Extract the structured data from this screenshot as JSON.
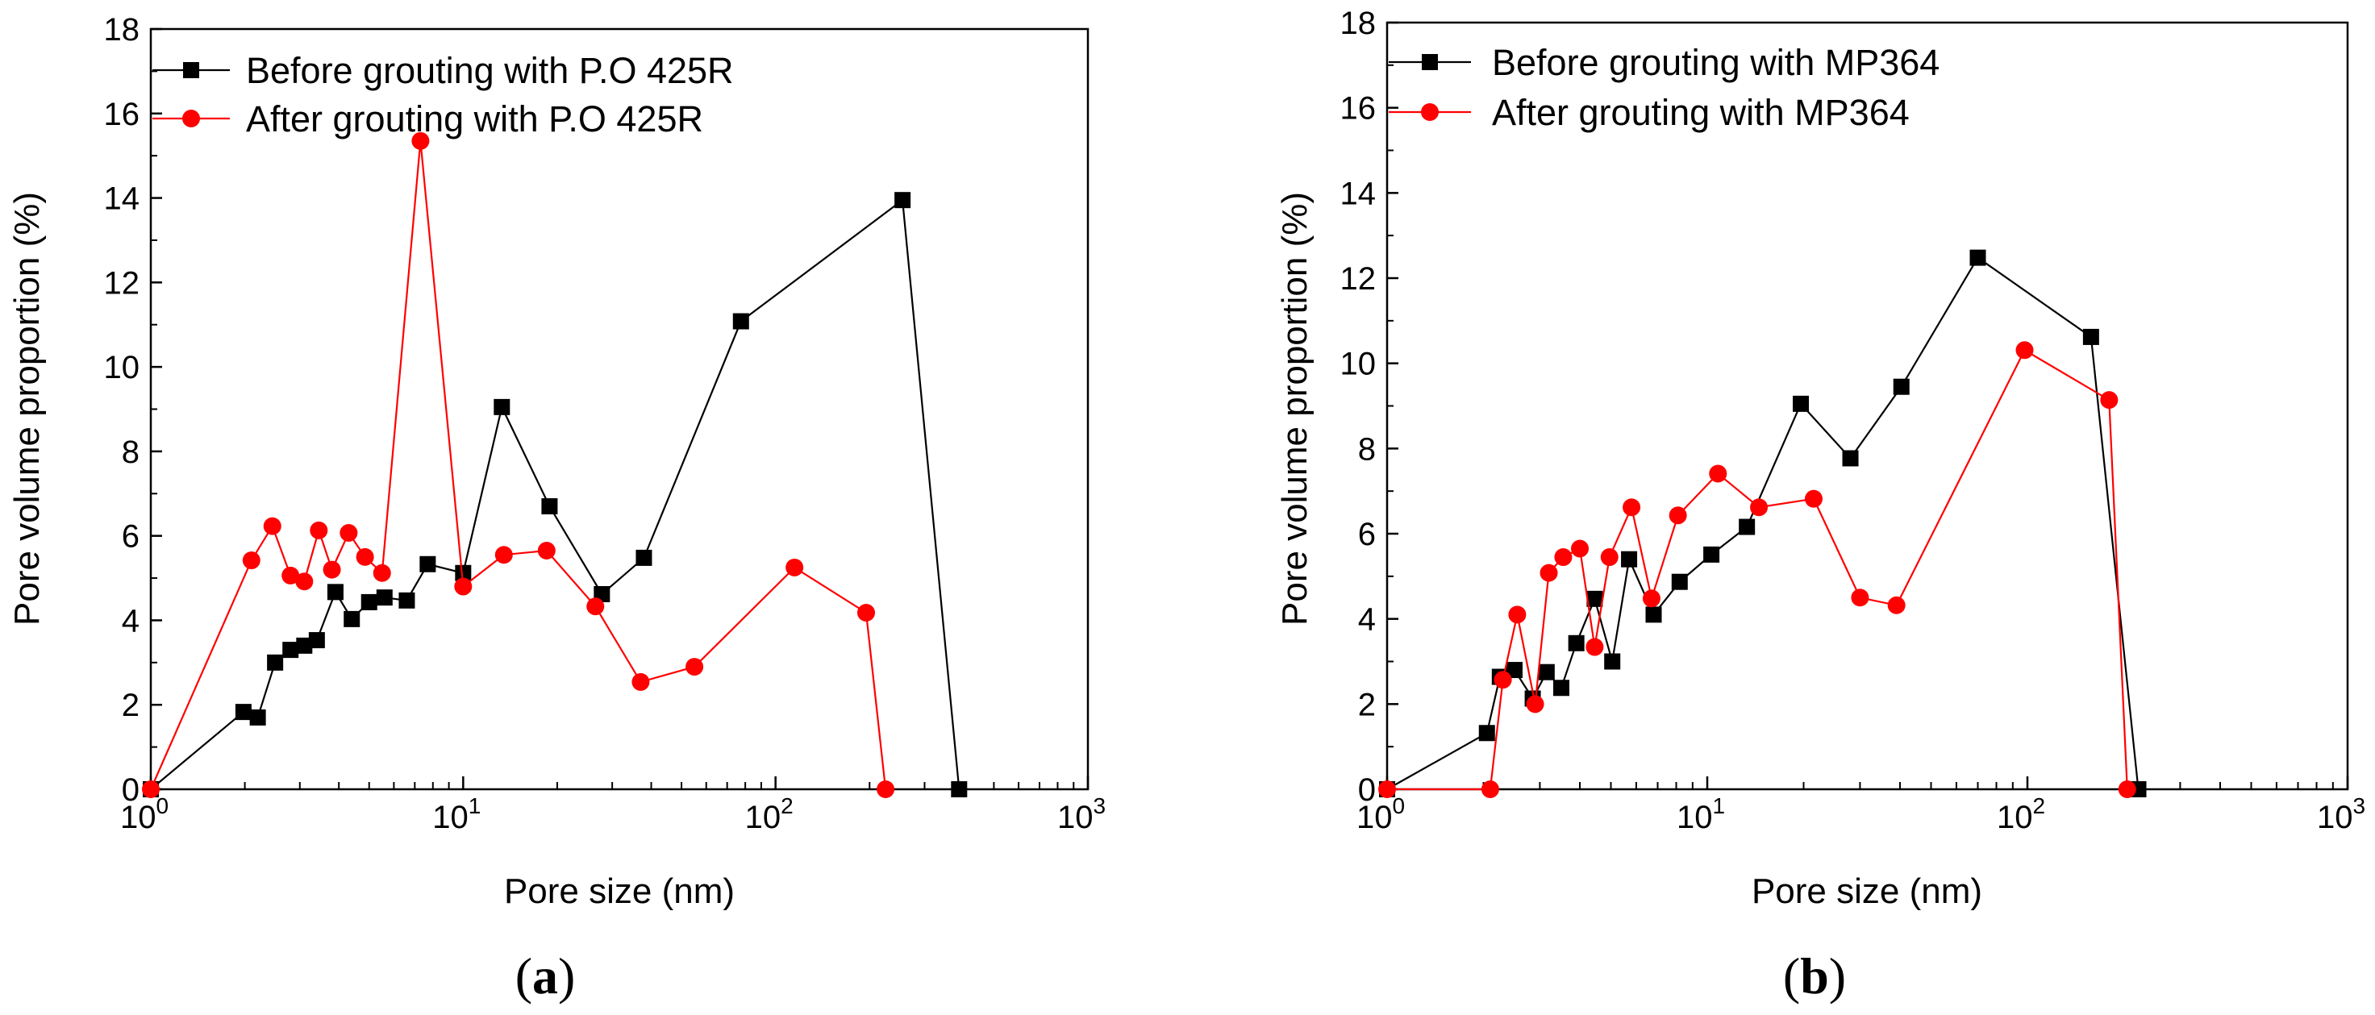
{
  "chart_data": [
    {
      "type": "line",
      "panel_label": "a",
      "xscale": "log",
      "xlim": [
        1,
        1000
      ],
      "ylim": [
        0,
        18
      ],
      "xlabel": "Pore size (nm)",
      "ylabel": "Pore volume proportion (%)",
      "xtick_values": [
        1,
        10,
        100,
        1000
      ],
      "xtick_labels": [
        "10^0",
        "10^1",
        "10^2",
        "10^3"
      ],
      "ytick_values": [
        0,
        2,
        4,
        6,
        8,
        10,
        12,
        14,
        16,
        18
      ],
      "ytick_labels": [
        "0",
        "2",
        "4",
        "6",
        "8",
        "10",
        "12",
        "14",
        "16",
        "18"
      ],
      "legend_position": "top-left",
      "series": [
        {
          "name": "Before grouting with P.O 425R",
          "color": "#000000",
          "marker": "square",
          "x": [
            1.0,
            1.98,
            2.2,
            2.5,
            2.8,
            3.1,
            3.4,
            3.9,
            4.4,
            5.0,
            5.6,
            6.6,
            7.7,
            10.0,
            13.3,
            18.9,
            27.8,
            37.9,
            77.5,
            255.0,
            387.0
          ],
          "y": [
            0.0,
            1.83,
            1.7,
            3.0,
            3.3,
            3.4,
            3.53,
            4.67,
            4.03,
            4.43,
            4.54,
            4.47,
            5.33,
            5.12,
            9.05,
            6.7,
            4.62,
            5.48,
            11.08,
            13.95,
            0.0
          ]
        },
        {
          "name": "After grouting with P.O 425R",
          "color": "#ff0000",
          "marker": "circle",
          "x": [
            1.0,
            2.1,
            2.45,
            2.8,
            3.1,
            3.45,
            3.8,
            4.3,
            4.85,
            5.5,
            7.3,
            10.0,
            13.5,
            18.5,
            26.5,
            37.0,
            55.0,
            115.0,
            195.0,
            225.0
          ],
          "y": [
            0.0,
            5.42,
            6.23,
            5.06,
            4.92,
            6.13,
            5.2,
            6.07,
            5.5,
            5.12,
            15.35,
            4.8,
            5.55,
            5.65,
            4.33,
            2.54,
            2.9,
            5.25,
            4.18,
            0.0
          ]
        }
      ]
    },
    {
      "type": "line",
      "panel_label": "b",
      "xscale": "log",
      "xlim": [
        1,
        1000
      ],
      "ylim": [
        0,
        18
      ],
      "xlabel": "Pore size (nm)",
      "ylabel": "Pore volume proportion (%)",
      "xtick_values": [
        1,
        10,
        100,
        1000
      ],
      "xtick_labels": [
        "10^0",
        "10^1",
        "10^2",
        "10^3"
      ],
      "ytick_values": [
        0,
        2,
        4,
        6,
        8,
        10,
        12,
        14,
        16,
        18
      ],
      "ytick_labels": [
        "0",
        "2",
        "4",
        "6",
        "8",
        "10",
        "12",
        "14",
        "16",
        "18"
      ],
      "legend_position": "top-left",
      "series": [
        {
          "name": "Before grouting with MP364",
          "color": "#000000",
          "marker": "square",
          "x": [
            1.0,
            2.05,
            2.25,
            2.5,
            2.85,
            3.15,
            3.5,
            3.9,
            4.45,
            5.05,
            5.7,
            6.8,
            8.2,
            10.3,
            13.3,
            19.6,
            28.0,
            40.4,
            70.0,
            158.0,
            222.0
          ],
          "y": [
            0.0,
            1.32,
            2.64,
            2.8,
            2.13,
            2.75,
            2.38,
            3.43,
            4.47,
            3.0,
            5.4,
            4.1,
            4.87,
            5.51,
            6.16,
            9.05,
            7.77,
            9.45,
            12.48,
            10.62,
            0.0
          ]
        },
        {
          "name": "After grouting with MP364",
          "color": "#ff0000",
          "marker": "circle",
          "x": [
            1.0,
            2.1,
            2.3,
            2.55,
            2.9,
            3.2,
            3.55,
            4.0,
            4.45,
            4.95,
            5.8,
            6.7,
            8.1,
            10.8,
            14.5,
            21.5,
            30.0,
            39.0,
            98.0,
            180.0,
            205.0
          ],
          "y": [
            0.0,
            0.0,
            2.57,
            4.1,
            2.0,
            5.08,
            5.45,
            5.65,
            3.34,
            5.45,
            6.62,
            4.48,
            6.43,
            7.41,
            6.62,
            6.82,
            4.5,
            4.32,
            10.31,
            9.14,
            0.0
          ]
        }
      ]
    }
  ]
}
